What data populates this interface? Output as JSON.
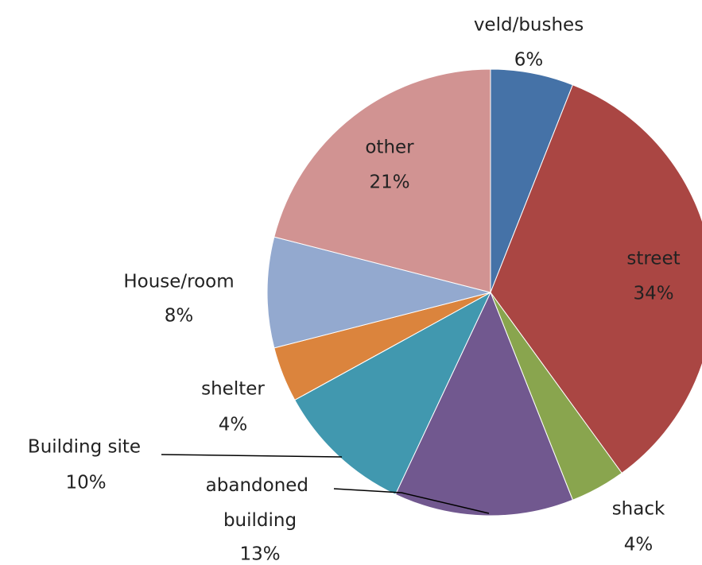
{
  "chart_data": {
    "type": "pie",
    "categories": [
      "veld/bushes",
      "street",
      "shack",
      "abandoned building",
      "Building site",
      "shelter",
      "House/room",
      "other"
    ],
    "values": [
      6,
      34,
      4,
      13,
      10,
      4,
      8,
      21
    ],
    "value_labels": [
      "6%",
      "34%",
      "4%",
      "13%",
      "10%",
      "4%",
      "8%",
      "21%"
    ],
    "colors": [
      "#4572a7",
      "#aa4643",
      "#89a54e",
      "#71588f",
      "#4198af",
      "#db843d",
      "#93a9cf",
      "#d19392"
    ]
  }
}
